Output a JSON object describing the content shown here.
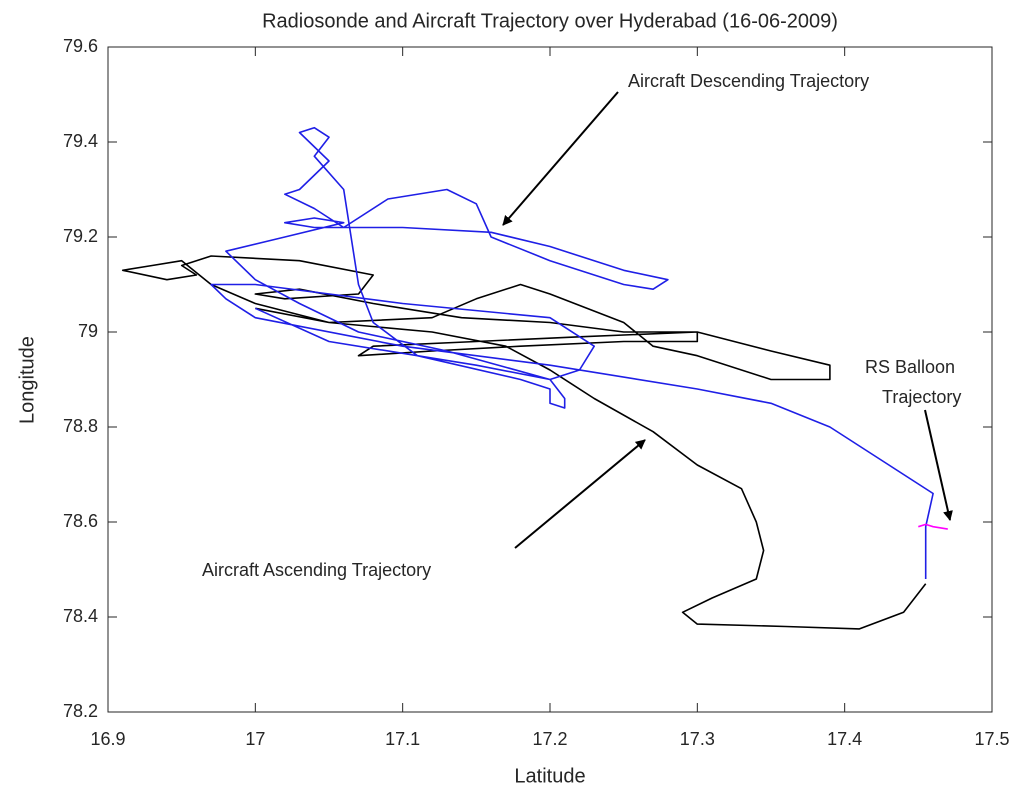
{
  "chart_data": {
    "type": "line",
    "title": "Radiosonde and Aircraft Trajectory over Hyderabad (16-06-2009)",
    "x_label": "Latitude",
    "y_label": "Longitude",
    "xlim": [
      16.9,
      17.5
    ],
    "xticks": [
      16.9,
      17,
      17.1,
      17.2,
      17.3,
      17.4,
      17.5
    ],
    "ylim": [
      78.2,
      79.6
    ],
    "yticks": [
      78.2,
      78.4,
      78.6,
      78.8,
      79,
      79.2,
      79.4,
      79.6
    ],
    "grid": false,
    "series": [
      {
        "color": "#000000",
        "x": [
          17.455,
          17.44,
          17.41,
          17.36,
          17.3,
          17.29,
          17.31,
          17.34,
          17.345,
          17.34,
          17.33,
          17.3,
          17.27,
          17.23,
          17.2,
          17.17,
          17.12,
          17.05,
          17.0,
          16.97,
          16.95,
          16.93,
          16.91,
          16.94,
          16.96,
          16.95,
          16.97,
          17.03,
          17.08,
          17.07,
          17.02,
          17.0,
          17.03,
          17.08,
          17.14,
          17.2,
          17.25,
          17.3,
          17.3,
          17.25,
          17.18,
          17.12,
          17.07,
          17.08,
          17.15,
          17.22,
          17.3,
          17.35,
          17.39,
          17.39,
          17.35,
          17.3,
          17.27,
          17.25,
          17.2,
          17.18,
          17.15,
          17.12,
          17.05,
          17.0
        ],
        "values": [
          78.47,
          78.41,
          78.375,
          78.38,
          78.385,
          78.41,
          78.44,
          78.48,
          78.54,
          78.6,
          78.67,
          78.72,
          78.79,
          78.86,
          78.92,
          78.97,
          79.0,
          79.02,
          79.06,
          79.1,
          79.15,
          79.14,
          79.13,
          79.11,
          79.12,
          79.14,
          79.16,
          79.15,
          79.12,
          79.08,
          79.07,
          79.08,
          79.09,
          79.06,
          79.03,
          79.02,
          79.0,
          79.0,
          78.98,
          78.98,
          78.97,
          78.96,
          78.95,
          78.97,
          78.98,
          78.99,
          79.0,
          78.96,
          78.93,
          78.9,
          78.9,
          78.95,
          78.97,
          79.02,
          79.08,
          79.1,
          79.07,
          79.03,
          79.02,
          79.05
        ]
      },
      {
        "color": "#1f1fe6",
        "x": [
          17.455,
          17.455,
          17.46,
          17.43,
          17.39,
          17.35,
          17.3,
          17.2,
          17.1,
          17.0,
          16.98,
          16.97,
          17.0,
          17.1,
          17.2,
          17.23,
          17.22,
          17.2,
          17.13,
          17.07,
          17.03,
          17.0,
          16.98,
          17.02,
          17.06,
          17.04,
          17.02,
          17.04,
          17.1,
          17.16,
          17.2,
          17.25,
          17.28,
          17.27,
          17.25,
          17.2,
          17.16,
          17.15,
          17.13,
          17.09,
          17.06,
          17.04,
          17.02,
          17.03,
          17.05,
          17.03,
          17.04,
          17.05,
          17.04,
          17.06,
          17.065,
          17.07,
          17.08,
          17.11,
          17.18,
          17.2,
          17.2,
          17.21,
          17.21,
          17.2,
          17.15,
          17.05,
          17.0
        ],
        "values": [
          78.48,
          78.59,
          78.66,
          78.72,
          78.8,
          78.85,
          78.88,
          78.93,
          78.97,
          79.03,
          79.07,
          79.1,
          79.1,
          79.06,
          79.03,
          78.97,
          78.92,
          78.9,
          78.96,
          79.0,
          79.06,
          79.11,
          79.17,
          79.2,
          79.23,
          79.24,
          79.23,
          79.22,
          79.22,
          79.21,
          79.18,
          79.13,
          79.11,
          79.09,
          79.1,
          79.15,
          79.2,
          79.27,
          79.3,
          79.28,
          79.22,
          79.26,
          79.29,
          79.3,
          79.36,
          79.42,
          79.43,
          79.41,
          79.37,
          79.3,
          79.2,
          79.1,
          79.02,
          78.95,
          78.9,
          78.88,
          78.85,
          78.84,
          78.86,
          78.9,
          78.93,
          78.98,
          79.05
        ]
      },
      {
        "color": "#ff00ff",
        "x": [
          17.45,
          17.455,
          17.46,
          17.47
        ],
        "values": [
          78.59,
          78.595,
          78.59,
          78.585
        ]
      }
    ],
    "annotations": [
      {
        "text": "Aircraft Descending Trajectory"
      },
      {
        "text": "Aircraft Ascending Trajectory"
      },
      {
        "lines": [
          "RS Balloon",
          "Trajectory"
        ]
      }
    ]
  }
}
